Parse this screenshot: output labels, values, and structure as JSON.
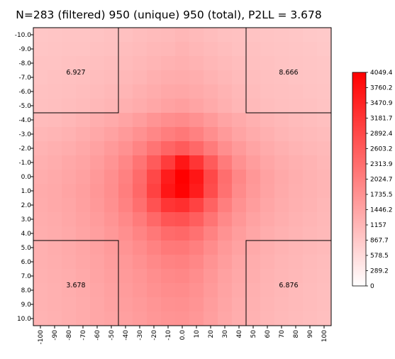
{
  "chart_data": {
    "type": "heatmap",
    "title": "N=283 (filtered) 950 (unique) 950 (total), P2LL = 3.678",
    "x_ticks": [
      "-100",
      "-90",
      "-80",
      "-70",
      "-60",
      "-50",
      "-40",
      "-30",
      "-20",
      "-10",
      "0.0",
      "10",
      "20",
      "30",
      "40",
      "50",
      "60",
      "70",
      "80",
      "90",
      "100"
    ],
    "y_ticks": [
      "-10.0",
      "-9.0",
      "-8.0",
      "-7.0",
      "-6.0",
      "-5.0",
      "-4.0",
      "-3.0",
      "-2.0",
      "-1.0",
      "0.0",
      "1.0",
      "2.0",
      "3.0",
      "4.0",
      "5.0",
      "6.0",
      "7.0",
      "8.0",
      "9.0",
      "10.0"
    ],
    "colorbar": {
      "min": 0,
      "max": 4049.4,
      "low_color": "#ffffff",
      "high_color": "#ff0000",
      "ticks": [
        "4049.4",
        "3760.2",
        "3470.9",
        "3181.7",
        "2892.4",
        "2603.2",
        "2313.9",
        "2024.7",
        "1735.5",
        "1446.2",
        "1157",
        "867.7",
        "578.5",
        "289.2",
        "0"
      ]
    },
    "values": [
      [
        900,
        920,
        930,
        940,
        950,
        980,
        1000,
        1050,
        1080,
        1100,
        1150,
        1100,
        1050,
        1000,
        980,
        950,
        930,
        920,
        900,
        880,
        860
      ],
      [
        920,
        940,
        950,
        960,
        980,
        1000,
        1050,
        1080,
        1120,
        1150,
        1200,
        1150,
        1100,
        1050,
        1000,
        980,
        950,
        940,
        920,
        900,
        880
      ],
      [
        950,
        960,
        980,
        1000,
        1020,
        1050,
        1080,
        1120,
        1180,
        1220,
        1250,
        1200,
        1150,
        1100,
        1050,
        1000,
        980,
        960,
        940,
        920,
        900
      ],
      [
        960,
        980,
        1000,
        1020,
        1050,
        1080,
        1120,
        1180,
        1250,
        1300,
        1320,
        1280,
        1200,
        1150,
        1080,
        1030,
        1000,
        980,
        960,
        940,
        920
      ],
      [
        980,
        1000,
        1020,
        1050,
        1080,
        1120,
        1180,
        1250,
        1320,
        1380,
        1400,
        1350,
        1280,
        1200,
        1120,
        1060,
        1020,
        1000,
        980,
        960,
        940
      ],
      [
        1000,
        1020,
        1050,
        1080,
        1120,
        1180,
        1250,
        1320,
        1400,
        1480,
        1520,
        1450,
        1350,
        1250,
        1160,
        1100,
        1050,
        1020,
        1000,
        980,
        960
      ],
      [
        1080,
        1100,
        1150,
        1200,
        1280,
        1350,
        1450,
        1550,
        1700,
        1800,
        1850,
        1750,
        1600,
        1450,
        1350,
        1250,
        1180,
        1120,
        1080,
        1050,
        1020
      ],
      [
        1150,
        1180,
        1220,
        1300,
        1380,
        1480,
        1600,
        1750,
        1900,
        2050,
        2150,
        2000,
        1800,
        1600,
        1450,
        1330,
        1250,
        1180,
        1130,
        1100,
        1070
      ],
      [
        1200,
        1250,
        1300,
        1380,
        1480,
        1600,
        1750,
        1950,
        2200,
        2450,
        2600,
        2400,
        2100,
        1800,
        1600,
        1450,
        1340,
        1250,
        1190,
        1150,
        1110
      ],
      [
        1250,
        1300,
        1380,
        1450,
        1550,
        1700,
        1900,
        2200,
        2600,
        3100,
        3700,
        3200,
        2600,
        2100,
        1750,
        1550,
        1420,
        1320,
        1250,
        1200,
        1150
      ],
      [
        1300,
        1350,
        1420,
        1500,
        1620,
        1780,
        2000,
        2350,
        2900,
        3600,
        4049,
        3700,
        2900,
        2300,
        1900,
        1650,
        1480,
        1360,
        1280,
        1230,
        1180
      ],
      [
        1330,
        1370,
        1440,
        1530,
        1650,
        1800,
        2050,
        2400,
        3000,
        3700,
        4000,
        3600,
        2850,
        2250,
        1850,
        1620,
        1460,
        1350,
        1270,
        1220,
        1170
      ],
      [
        1320,
        1360,
        1420,
        1510,
        1620,
        1760,
        1980,
        2280,
        2750,
        3200,
        3300,
        3000,
        2500,
        2050,
        1750,
        1560,
        1420,
        1320,
        1250,
        1200,
        1150
      ],
      [
        1300,
        1340,
        1400,
        1480,
        1580,
        1700,
        1880,
        2100,
        2400,
        2700,
        2750,
        2550,
        2200,
        1880,
        1650,
        1480,
        1360,
        1280,
        1220,
        1170,
        1130
      ],
      [
        1280,
        1320,
        1370,
        1440,
        1530,
        1640,
        1780,
        1950,
        2150,
        2350,
        2400,
        2250,
        1980,
        1730,
        1550,
        1410,
        1310,
        1240,
        1190,
        1150,
        1110
      ],
      [
        1260,
        1300,
        1350,
        1410,
        1490,
        1590,
        1700,
        1830,
        1980,
        2120,
        2150,
        2030,
        1820,
        1620,
        1470,
        1350,
        1270,
        1210,
        1160,
        1120,
        1090
      ],
      [
        1250,
        1280,
        1330,
        1390,
        1460,
        1550,
        1640,
        1750,
        1870,
        1970,
        2000,
        1900,
        1720,
        1550,
        1420,
        1310,
        1240,
        1180,
        1140,
        1100,
        1070
      ],
      [
        1240,
        1270,
        1310,
        1370,
        1440,
        1520,
        1600,
        1690,
        1800,
        1880,
        1900,
        1810,
        1650,
        1500,
        1380,
        1280,
        1210,
        1160,
        1120,
        1080,
        1050
      ],
      [
        1230,
        1260,
        1300,
        1350,
        1420,
        1490,
        1570,
        1650,
        1740,
        1810,
        1830,
        1750,
        1600,
        1460,
        1350,
        1260,
        1190,
        1140,
        1100,
        1070,
        1040
      ],
      [
        1220,
        1250,
        1290,
        1340,
        1400,
        1470,
        1540,
        1610,
        1690,
        1750,
        1770,
        1700,
        1560,
        1430,
        1320,
        1240,
        1170,
        1120,
        1090,
        1060,
        1030
      ],
      [
        1210,
        1240,
        1280,
        1330,
        1390,
        1450,
        1510,
        1580,
        1650,
        1700,
        1720,
        1650,
        1520,
        1400,
        1300,
        1220,
        1160,
        1110,
        1080,
        1050,
        1020
      ]
    ],
    "regions": [
      {
        "x_from": "-100",
        "x_to": "-50",
        "y_from": "-10.0",
        "y_to": "-5.0",
        "label": "6.927"
      },
      {
        "x_from": "50",
        "x_to": "100",
        "y_from": "-10.0",
        "y_to": "-5.0",
        "label": "8.666"
      },
      {
        "x_from": "-100",
        "x_to": "-50",
        "y_from": "5.0",
        "y_to": "10.0",
        "label": "3.678"
      },
      {
        "x_from": "50",
        "x_to": "100",
        "y_from": "5.0",
        "y_to": "10.0",
        "label": "6.876"
      }
    ]
  }
}
